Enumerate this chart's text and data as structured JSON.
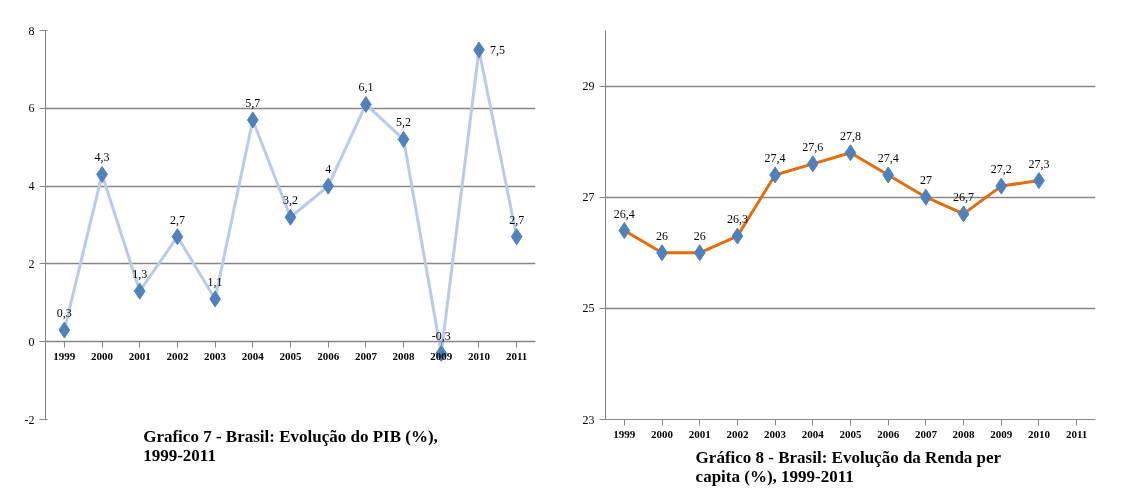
{
  "chart_data": [
    {
      "type": "line",
      "title": "Grafico 7 - Brasil: Evolução do PIB (%),\n1999-2011",
      "categories": [
        "1999",
        "2000",
        "2001",
        "2002",
        "2003",
        "2004",
        "2005",
        "2006",
        "2007",
        "2008",
        "2009",
        "2010",
        "2011"
      ],
      "series": [
        {
          "color": "#b9cbe9",
          "colors": [
            "#4f81bd",
            "#4f81bd",
            "#4f81bd",
            "#4f81bd",
            "#4f81bd",
            "#4f81bd",
            "#4f81bd",
            "#4f81bd",
            "#4f81bd",
            "#4f81bd",
            "#4f81bd",
            "#4f81bd",
            "#4f81bd"
          ],
          "values": [
            0.3,
            4.3,
            1.3,
            2.7,
            1.1,
            5.7,
            3.2,
            4,
            6.1,
            5.2,
            -0.3,
            7.5,
            2.7
          ],
          "value_labels": [
            "0,3",
            "4,3",
            "1,3",
            "2,7",
            "1,1",
            "5,7",
            "3,2",
            "4",
            "6,1",
            "5,2",
            "-0,3",
            "7,5",
            "2,7"
          ]
        }
      ],
      "ylim": [
        -2,
        8
      ],
      "yticks": [
        -2,
        0,
        2,
        4,
        6,
        8
      ],
      "grid": "y",
      "marker": "diamond"
    },
    {
      "type": "line",
      "title": "Gráfico 8 - Brasil:  Evolução da Renda per\ncapita (%), 1999-2011",
      "categories": [
        "1999",
        "2000",
        "2001",
        "2002",
        "2003",
        "2004",
        "2005",
        "2006",
        "2007",
        "2008",
        "2009",
        "2010",
        "2011"
      ],
      "series": [
        {
          "color": "#e46c0a",
          "colors": [
            "#4f81bd",
            "#4f81bd",
            "#4f81bd",
            "#4f81bd",
            "#4f81bd",
            "#4f81bd",
            "#4f81bd",
            "#4f81bd",
            "#4f81bd",
            "#4f81bd",
            "#4f81bd",
            "#4f81bd",
            "#4f81bd"
          ],
          "values": [
            26.4,
            26,
            26,
            26.3,
            27.4,
            27.6,
            27.8,
            27.4,
            27,
            26.7,
            27.2,
            27.3,
            null
          ],
          "value_labels": [
            "26,4",
            "26",
            "26",
            "26,3",
            "27,4",
            "27,6",
            "27,8",
            "27,4",
            "27",
            "26,7",
            "27,2",
            "27,3",
            null
          ]
        }
      ],
      "ylim": [
        23,
        30
      ],
      "yticks": [
        23,
        25,
        27,
        29
      ],
      "grid": "y",
      "marker": "diamond"
    }
  ]
}
